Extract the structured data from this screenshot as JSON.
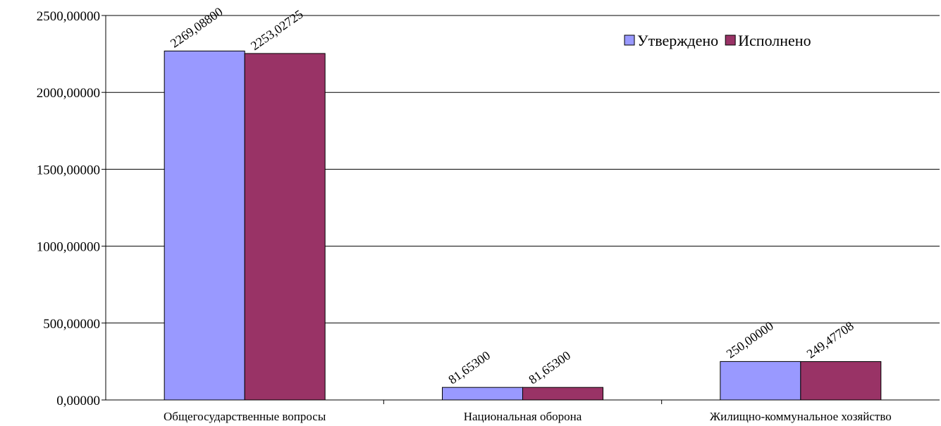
{
  "chart_data": {
    "type": "bar",
    "title": "",
    "xlabel": "",
    "ylabel": "",
    "categories": [
      "Общегосударственные  вопросы",
      "Национальная оборона",
      "Жилищно-коммунальное хозяйство"
    ],
    "series": [
      {
        "name": "Утверждено",
        "color": "#9999ff",
        "values": [
          2269.088,
          81.653,
          250.0
        ],
        "labels": [
          "2269,08800",
          "81,65300",
          "250,00000"
        ]
      },
      {
        "name": "Исполнено",
        "color": "#993366",
        "values": [
          2253.02725,
          81.653,
          249.47708
        ],
        "labels": [
          "2253,02725",
          "81,65300",
          "249,47708"
        ]
      }
    ],
    "ylim": [
      0,
      2500
    ],
    "yticks": [
      0,
      500,
      1000,
      1500,
      2000,
      2500
    ],
    "ytick_labels": [
      "0,00000",
      "500,00000",
      "1000,00000",
      "1500,00000",
      "2000,00000",
      "2500,00000"
    ],
    "grid": true,
    "legend_position": "top-right"
  }
}
